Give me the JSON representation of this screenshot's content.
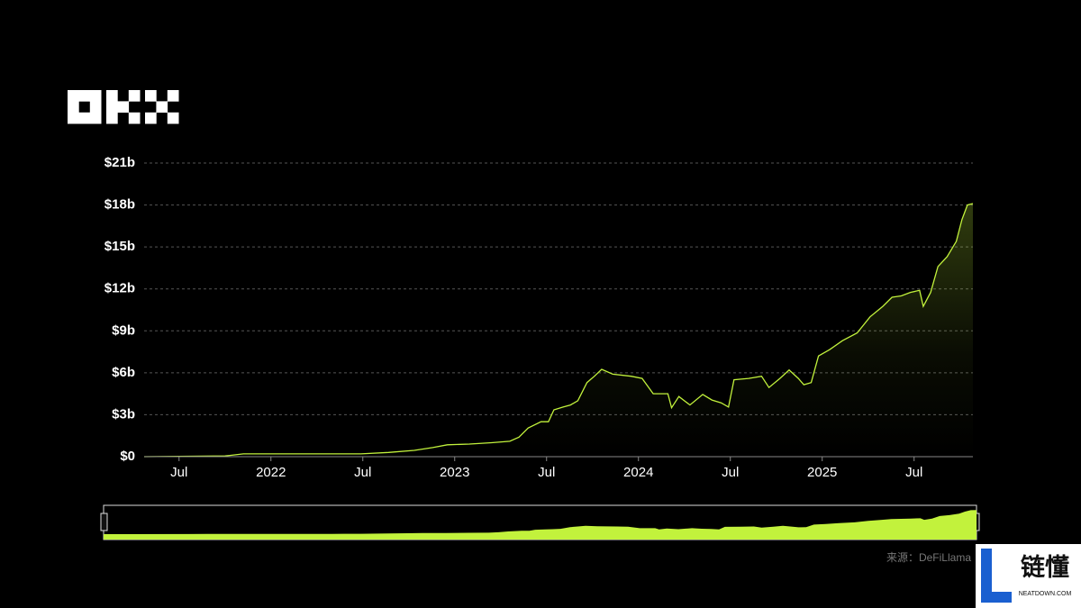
{
  "chart_data": {
    "type": "area",
    "x": [
      2021.31,
      2021.75,
      2021.85,
      2022.0,
      2022.25,
      2022.49,
      2022.64,
      2022.78,
      2022.88,
      2022.96,
      2023.08,
      2023.2,
      2023.3,
      2023.35,
      2023.4,
      2023.47,
      2023.51,
      2023.54,
      2023.59,
      2023.63,
      2023.67,
      2023.72,
      2023.76,
      2023.8,
      2023.86,
      2023.96,
      2024.02,
      2024.08,
      2024.16,
      2024.18,
      2024.22,
      2024.28,
      2024.35,
      2024.4,
      2024.45,
      2024.49,
      2024.52,
      2024.6,
      2024.67,
      2024.71,
      2024.77,
      2024.82,
      2024.87,
      2024.9,
      2024.94,
      2024.98,
      2025.04,
      2025.11,
      2025.19,
      2025.26,
      2025.33,
      2025.38,
      2025.43,
      2025.48,
      2025.53,
      2025.55,
      2025.59,
      2025.63,
      2025.68,
      2025.73,
      2025.76,
      2025.79,
      2025.82
    ],
    "values": [
      0.0,
      0.05,
      0.2,
      0.2,
      0.2,
      0.2,
      0.3,
      0.45,
      0.65,
      0.85,
      0.9,
      1.0,
      1.1,
      1.4,
      2.05,
      2.5,
      2.5,
      3.35,
      3.55,
      3.7,
      4.0,
      5.3,
      5.75,
      6.25,
      5.9,
      5.75,
      5.6,
      4.5,
      4.5,
      3.5,
      4.3,
      3.7,
      4.45,
      4.05,
      3.85,
      3.55,
      5.5,
      5.6,
      5.75,
      4.95,
      5.6,
      6.2,
      5.6,
      5.15,
      5.3,
      7.2,
      7.65,
      8.3,
      8.85,
      10.0,
      10.75,
      11.4,
      11.5,
      11.75,
      11.9,
      10.75,
      11.75,
      13.6,
      14.3,
      15.4,
      16.95,
      18.0,
      18.1
    ],
    "color": "#c2f23c",
    "xlim": [
      2021.31,
      2025.82
    ],
    "xticks": [
      {
        "value": 2021.5,
        "label": "Jul"
      },
      2022,
      {
        "value": 2022.5,
        "label": "Jul"
      },
      2023,
      {
        "value": 2023.5,
        "label": "Jul"
      },
      2024,
      {
        "value": 2024.5,
        "label": "Jul"
      },
      2025,
      {
        "value": 2025.5,
        "label": "Jul"
      }
    ],
    "ylim": [
      0,
      21
    ],
    "yticks": [
      {
        "value": 0,
        "label": "$0"
      },
      {
        "value": 3,
        "label": "$3b"
      },
      {
        "value": 6,
        "label": "$6b"
      },
      {
        "value": 9,
        "label": "$9b"
      },
      {
        "value": 12,
        "label": "$12b"
      },
      {
        "value": 15,
        "label": "$15b"
      },
      {
        "value": 18,
        "label": "$18b"
      },
      {
        "value": 21,
        "label": "$21b"
      }
    ],
    "grid": true
  },
  "source": "来源：DeFiLlama",
  "watermark": {
    "name": "链懂",
    "site": "NEATDOWN.COM"
  }
}
